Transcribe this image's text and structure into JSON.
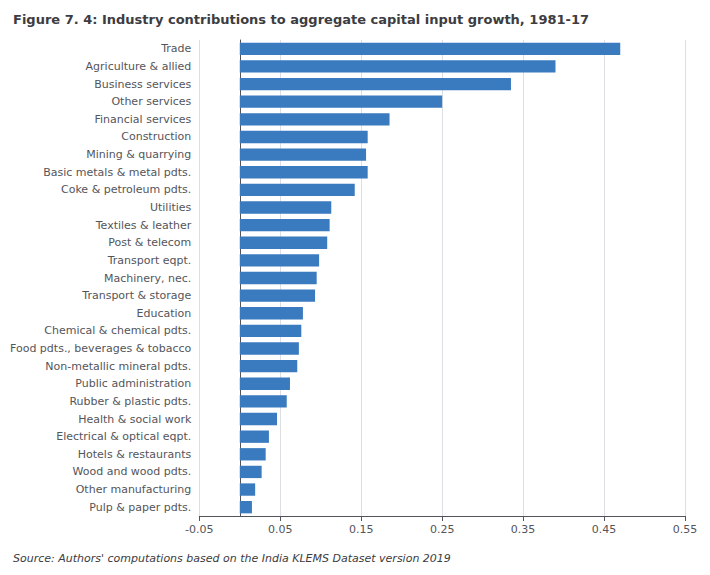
{
  "chart_data": {
    "type": "bar",
    "orientation": "horizontal",
    "title": "Figure 7. 4: Industry contributions to aggregate capital input growth, 1981-17",
    "source": "Source: Authors' computations based on the India KLEMS Dataset version 2019",
    "categories": [
      "Trade",
      "Agriculture & allied",
      "Business services",
      "Other services",
      "Financial services",
      "Construction",
      "Mining & quarrying",
      "Basic metals & metal pdts.",
      "Coke & petroleum pdts.",
      "Utilities",
      "Textiles & leather",
      "Post & telecom",
      "Transport eqpt.",
      "Machinery, nec.",
      "Transport & storage",
      "Education",
      "Chemical & chemical pdts.",
      "Food pdts., beverages & tobacco",
      "Non-metallic mineral pdts.",
      "Public administration",
      "Rubber & plastic pdts.",
      "Health & social work",
      "Electrical & optical eqpt.",
      "Hotels & restaurants",
      "Wood and wood pdts.",
      "Other manufacturing",
      "Pulp & paper pdts."
    ],
    "values": [
      0.47,
      0.39,
      0.335,
      0.25,
      0.185,
      0.158,
      0.156,
      0.158,
      0.142,
      0.113,
      0.111,
      0.108,
      0.098,
      0.095,
      0.093,
      0.078,
      0.076,
      0.073,
      0.071,
      0.062,
      0.058,
      0.046,
      0.036,
      0.032,
      0.027,
      0.019,
      0.015
    ],
    "color": "#3a7abf",
    "xlim": [
      -0.05,
      0.55
    ],
    "xticks": [
      -0.05,
      0.05,
      0.15,
      0.25,
      0.35,
      0.45,
      0.55
    ],
    "grid": true
  }
}
